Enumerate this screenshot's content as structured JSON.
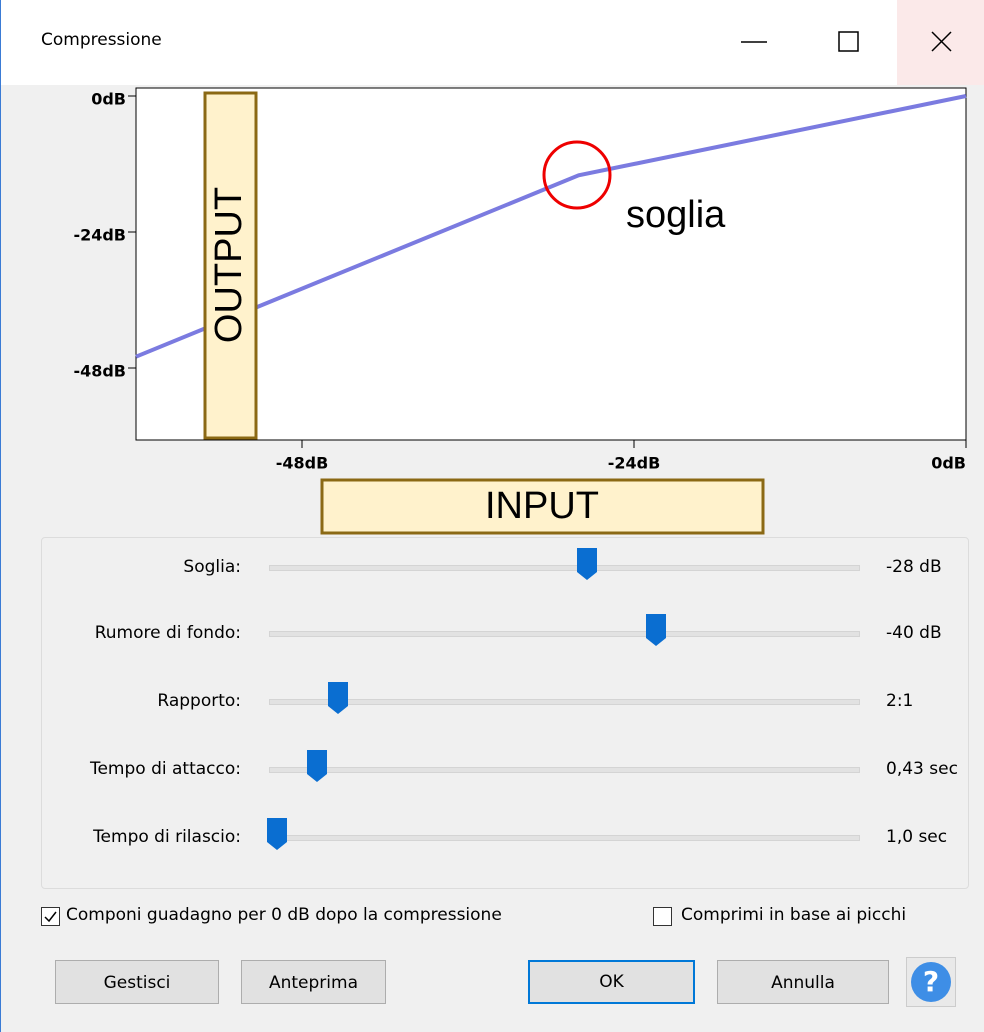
{
  "window": {
    "title": "Compressione"
  },
  "chart_data": {
    "type": "line",
    "x": [
      -60,
      -28,
      0
    ],
    "values": [
      -46,
      -14,
      0
    ],
    "color": "#7b7be0",
    "xlim": [
      -60,
      0
    ],
    "ylim": [
      -60,
      0
    ],
    "xticks": [
      {
        "value": -48,
        "label": "-48dB"
      },
      {
        "value": -24,
        "label": "-24dB"
      },
      {
        "value": 0,
        "label": "0dB"
      }
    ],
    "yticks": [
      {
        "value": 0,
        "label": "0dB"
      },
      {
        "value": -24,
        "label": "-24dB"
      },
      {
        "value": -48,
        "label": "-48dB"
      }
    ],
    "annotations": {
      "output": "OUTPUT",
      "input": "INPUT",
      "threshold": "soglia"
    }
  },
  "sliders": [
    {
      "label": "Soglia:",
      "value": "-28 dB"
    },
    {
      "label": "Rumore di fondo:",
      "value": "-40 dB"
    },
    {
      "label": "Rapporto:",
      "value": "2:1"
    },
    {
      "label": "Tempo di attacco:",
      "value": "0,43 sec"
    },
    {
      "label": "Tempo di rilascio:",
      "value": "1,0 sec"
    }
  ],
  "checkboxes": [
    {
      "label": "Componi guadagno per 0 dB dopo la compressione",
      "checked": true
    },
    {
      "label": "Comprimi in base ai picchi",
      "checked": false
    }
  ],
  "buttons": {
    "manage": "Gestisci",
    "preview": "Anteprima",
    "ok": "OK",
    "cancel": "Annulla",
    "help": "?"
  }
}
